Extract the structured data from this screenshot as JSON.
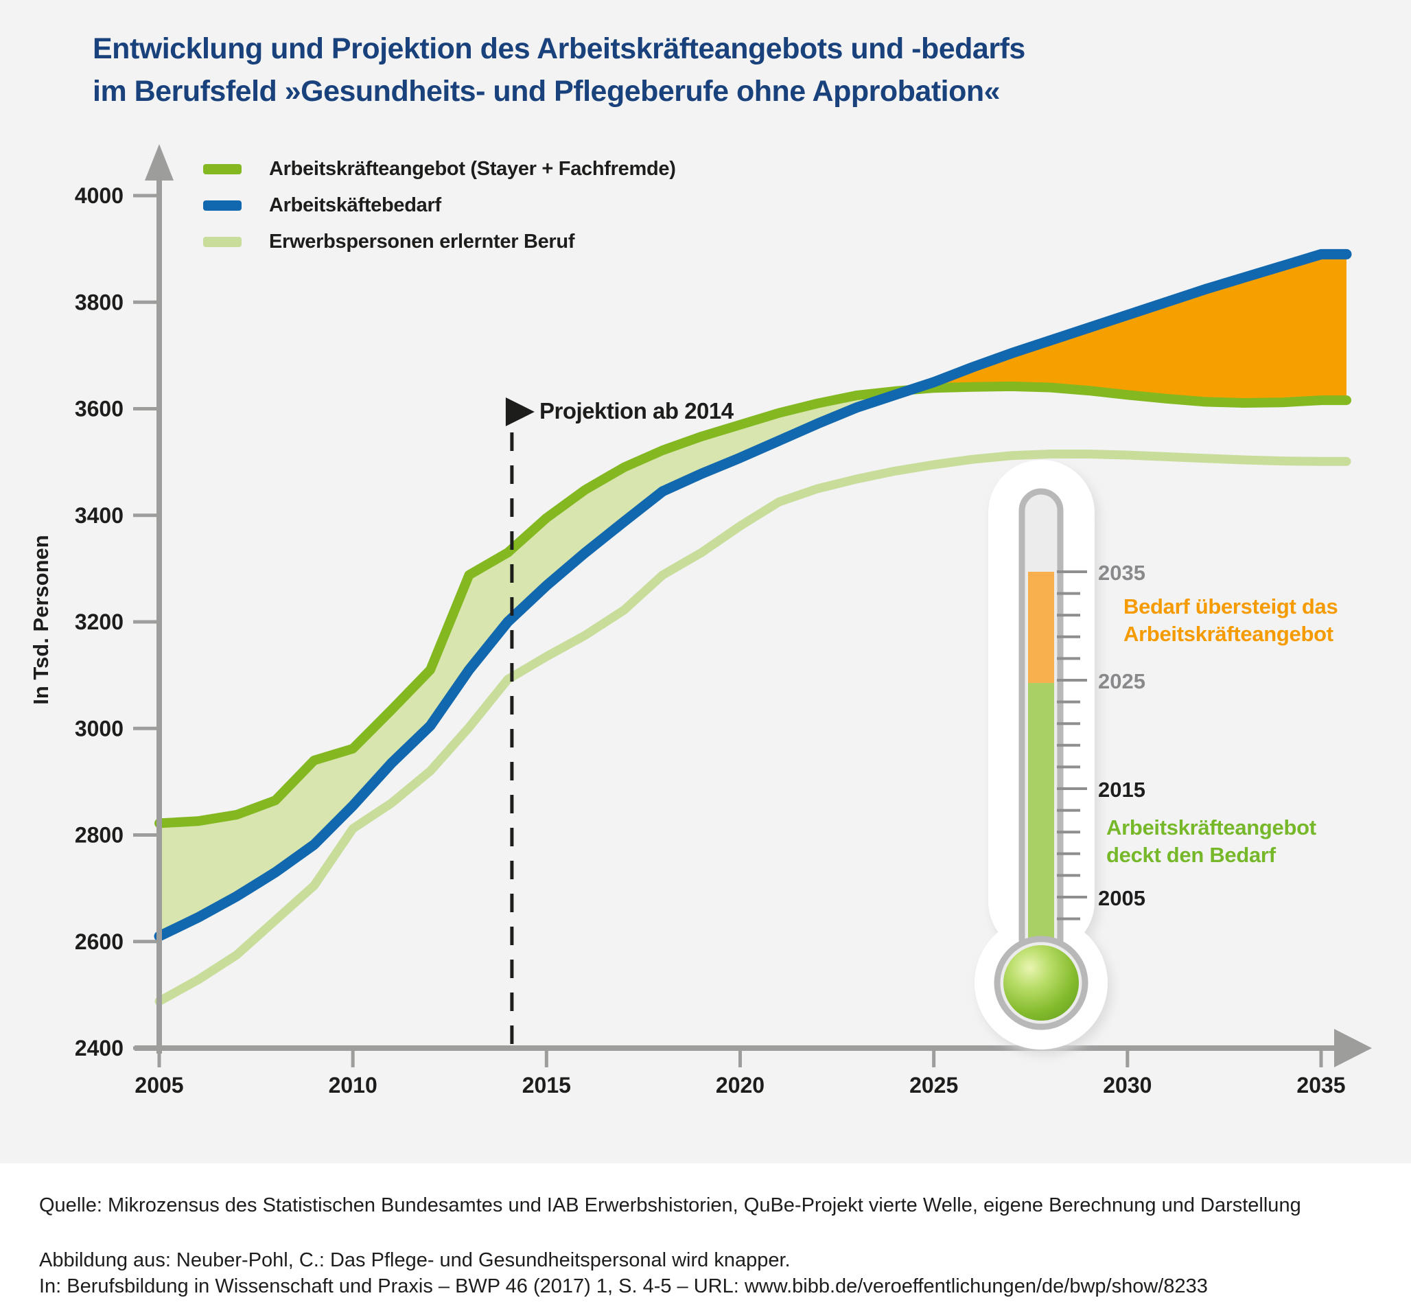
{
  "title": {
    "line1": "Entwicklung und Projektion des Arbeitskräfteangebots und -bedarfs",
    "line2": "im Berufsfeld »Gesundheits- und Pflegeberufe ohne Approbation«"
  },
  "legend": {
    "items": [
      {
        "label": "Arbeitskräfteangebot (Stayer + Fachfremde)",
        "color": "#84b821"
      },
      {
        "label": "Arbeitskäftebedarf",
        "color": "#1168af"
      },
      {
        "label": "Erwerbspersonen erlernter Beruf",
        "color": "#c9dd9b"
      }
    ]
  },
  "axes": {
    "y_label": "In Tsd. Personen",
    "y_ticks": [
      2400,
      2600,
      2800,
      3000,
      3200,
      3400,
      3600,
      3800,
      4000
    ],
    "x_ticks": [
      2005,
      2010,
      2015,
      2020,
      2025,
      2030,
      2035
    ]
  },
  "projection": {
    "label": "Projektion ab 2014",
    "year": 2014
  },
  "thermometer": {
    "scale_labels": [
      {
        "text": "2035",
        "color": "#88898b"
      },
      {
        "text": "2025",
        "color": "#88898b"
      },
      {
        "text": "2015",
        "color": "#1d1d1b"
      },
      {
        "text": "2005",
        "color": "#1d1d1b"
      }
    ],
    "surplus_text": "Bedarf übersteigt das\nArbeitskräfteangebot",
    "covered_text": "Arbeitskräfteangebot\ndeckt den Bedarf",
    "surplus_color": "#f8b04e",
    "covered_color": "#a9d065"
  },
  "footer": {
    "source": "Quelle: Mikrozensus des Statistischen Bundesamtes und IAB Erwerbshistorien, QuBe-Projekt vierte Welle, eigene Berechnung und Darstellung",
    "attribution_line1": "Abbildung aus: Neuber-Pohl, C.: Das Pflege- und Gesundheitspersonal wird knapper.",
    "attribution_line2": "In: Berufsbildung in Wissenschaft und Praxis – BWP 46 (2017) 1, S. 4-5 – URL: www.bibb.de/veroeffentlichungen/de/bwp/show/8233"
  },
  "chart_data": {
    "type": "area",
    "title": "Entwicklung und Projektion des Arbeitskräfteangebots und -bedarfs im Berufsfeld »Gesundheits- und Pflegeberufe ohne Approbation«",
    "ylabel": "In Tsd. Personen",
    "ylim": [
      2400,
      4000
    ],
    "xlim": [
      2005,
      2035
    ],
    "grid": false,
    "legend_position": "top-left",
    "x": [
      2005,
      2006,
      2007,
      2008,
      2009,
      2010,
      2011,
      2012,
      2013,
      2014,
      2015,
      2016,
      2017,
      2018,
      2019,
      2020,
      2021,
      2022,
      2023,
      2024,
      2025,
      2026,
      2027,
      2028,
      2029,
      2030,
      2031,
      2032,
      2033,
      2034,
      2035
    ],
    "series": [
      {
        "name": "Arbeitskräfteangebot (Stayer + Fachfremde)",
        "color": "#84b821",
        "values": [
          2822,
          2826,
          2838,
          2865,
          2940,
          2962,
          3035,
          3110,
          3288,
          3330,
          3395,
          3448,
          3490,
          3522,
          3548,
          3570,
          3592,
          3610,
          3625,
          3633,
          3639,
          3641,
          3642,
          3640,
          3634,
          3626,
          3619,
          3613,
          3611,
          3612,
          3616
        ]
      },
      {
        "name": "Arbeitskäftebedarf",
        "color": "#1168af",
        "values": [
          2610,
          2645,
          2685,
          2730,
          2782,
          2855,
          2935,
          3005,
          3110,
          3200,
          3268,
          3330,
          3388,
          3445,
          3478,
          3508,
          3540,
          3572,
          3602,
          3626,
          3650,
          3678,
          3704,
          3728,
          3752,
          3776,
          3800,
          3824,
          3846,
          3868,
          3890
        ]
      },
      {
        "name": "Erwerbspersonen erlernter Beruf",
        "color": "#c9dd9b",
        "values": [
          2488,
          2528,
          2575,
          2640,
          2705,
          2812,
          2860,
          2920,
          3002,
          3092,
          3135,
          3175,
          3222,
          3288,
          3330,
          3380,
          3425,
          3450,
          3468,
          3483,
          3495,
          3505,
          3512,
          3515,
          3515,
          3513,
          3510,
          3507,
          3504,
          3502,
          3501
        ]
      }
    ],
    "fills": {
      "supply_exceeds_demand_color": "#d8e5ae",
      "demand_exceeds_supply_color": "#f6a000"
    },
    "annotations": [
      "Projektion ab 2014",
      "Bedarf übersteigt das Arbeitskräfteangebot",
      "Arbeitskräfteangebot deckt den Bedarf"
    ]
  }
}
